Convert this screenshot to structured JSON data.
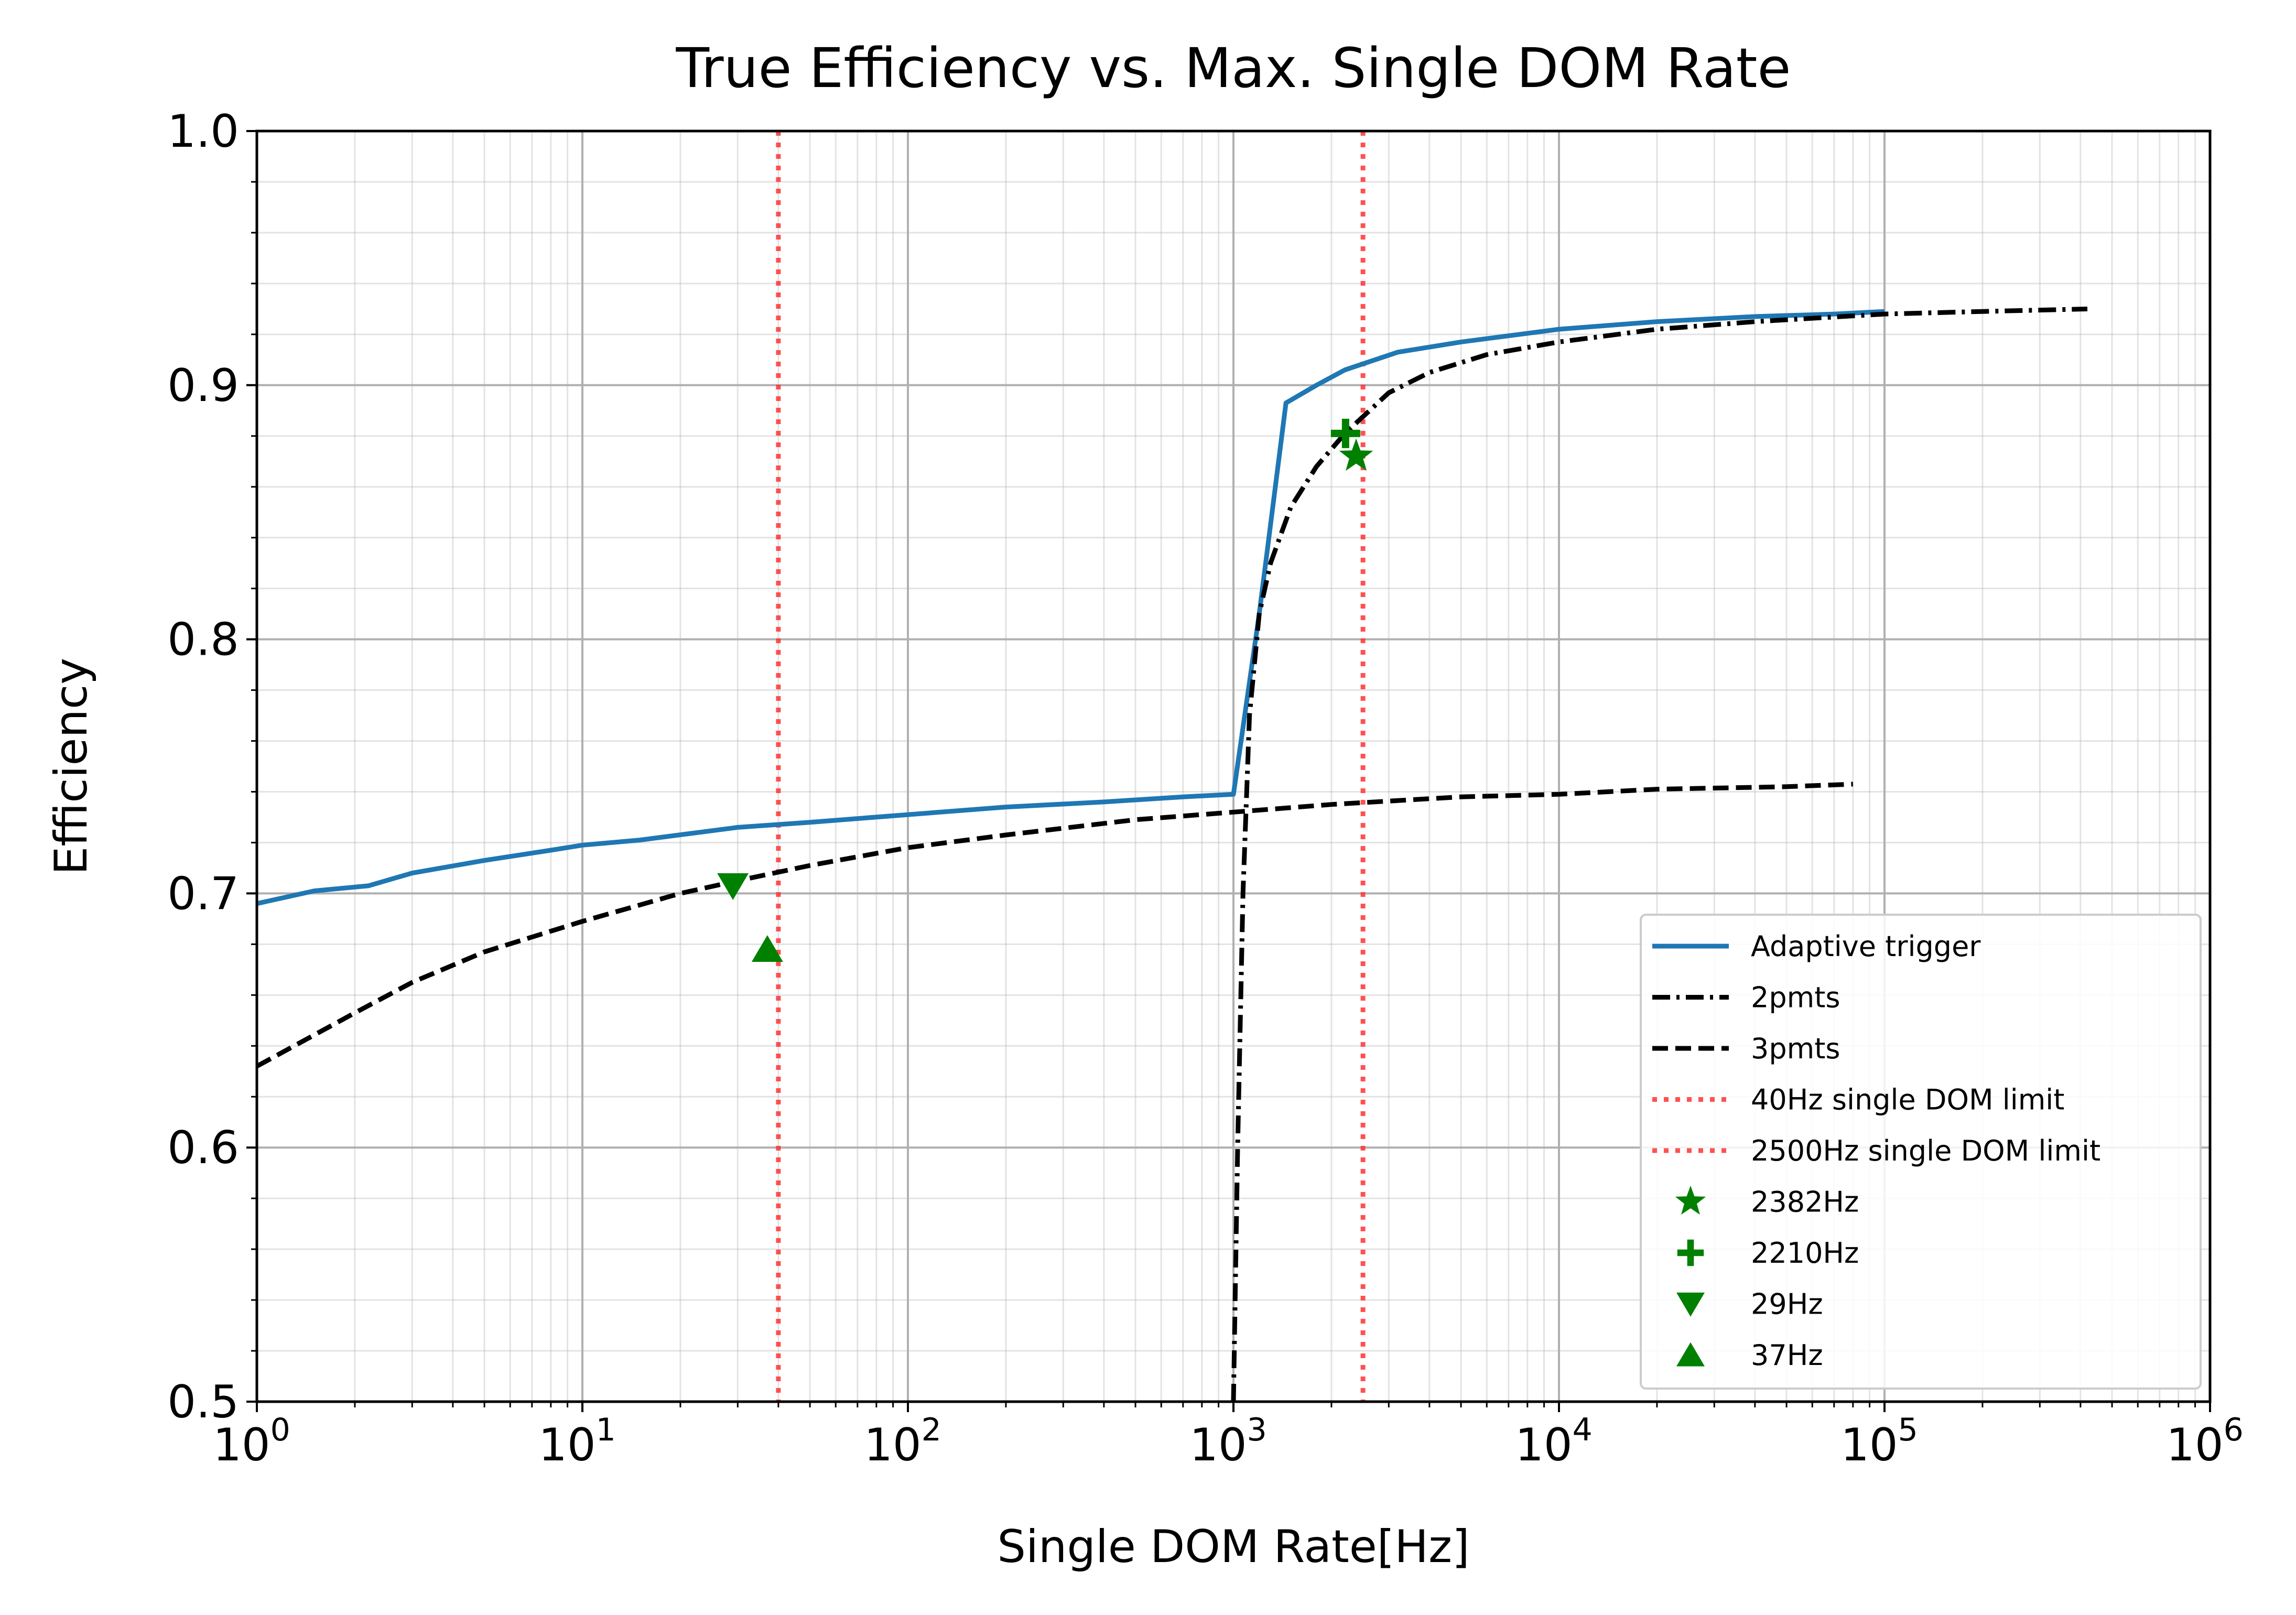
{
  "chart_data": {
    "type": "line",
    "title": "True Efficiency vs. Max. Single DOM Rate",
    "xlabel": "Single DOM Rate[Hz]",
    "ylabel": "Efficiency",
    "xscale": "log",
    "xlim": [
      1,
      1000000
    ],
    "ylim": [
      0.5,
      1.0
    ],
    "grid": true,
    "legend_position": "lower-right",
    "x_tick_labels": [
      {
        "base": "10",
        "exp": "0"
      },
      {
        "base": "10",
        "exp": "1"
      },
      {
        "base": "10",
        "exp": "2"
      },
      {
        "base": "10",
        "exp": "3"
      },
      {
        "base": "10",
        "exp": "4"
      },
      {
        "base": "10",
        "exp": "5"
      },
      {
        "base": "10",
        "exp": "6"
      }
    ],
    "y_tick_labels": [
      "0.5",
      "0.6",
      "0.7",
      "0.8",
      "0.9",
      "1.0"
    ],
    "series": [
      {
        "name": "Adaptive trigger",
        "style": "solid",
        "color": "#1f77b4",
        "x": [
          1,
          1.5,
          2.2,
          3,
          5,
          8,
          10,
          15,
          30,
          50,
          100,
          200,
          400,
          700,
          1000,
          1200,
          1450,
          1800,
          2200,
          3200,
          5000,
          10000,
          20000,
          40000,
          70000,
          100000
        ],
        "y": [
          0.696,
          0.701,
          0.703,
          0.708,
          0.713,
          0.717,
          0.719,
          0.721,
          0.726,
          0.728,
          0.731,
          0.734,
          0.736,
          0.738,
          0.739,
          0.81,
          0.893,
          0.9,
          0.906,
          0.913,
          0.917,
          0.922,
          0.925,
          0.927,
          0.928,
          0.929
        ]
      },
      {
        "name": "2pmts",
        "style": "dashdot",
        "color": "#000000",
        "x": [
          1000,
          1030,
          1070,
          1120,
          1200,
          1300,
          1500,
          1800,
          2200,
          3000,
          4000,
          6000,
          10000,
          20000,
          40000,
          100000,
          200000,
          420000
        ],
        "y": [
          0.5,
          0.6,
          0.7,
          0.77,
          0.81,
          0.83,
          0.852,
          0.868,
          0.881,
          0.897,
          0.905,
          0.912,
          0.917,
          0.922,
          0.925,
          0.928,
          0.929,
          0.93
        ]
      },
      {
        "name": "3pmts",
        "style": "dashed",
        "color": "#000000",
        "x": [
          1,
          2,
          3,
          5,
          10,
          20,
          30,
          50,
          100,
          200,
          500,
          1000,
          2000,
          5000,
          10000,
          20000,
          50000,
          80000
        ],
        "y": [
          0.632,
          0.653,
          0.665,
          0.677,
          0.689,
          0.7,
          0.705,
          0.711,
          0.718,
          0.723,
          0.729,
          0.732,
          0.735,
          0.738,
          0.739,
          0.741,
          0.742,
          0.743
        ]
      }
    ],
    "vlines": [
      {
        "name": "40Hz single DOM limit",
        "x": 40,
        "color": "#ff3333"
      },
      {
        "name": "2500Hz single DOM limit",
        "x": 2500,
        "color": "#ff3333"
      }
    ],
    "markers": [
      {
        "name": "2382Hz",
        "shape": "star",
        "x": 2382,
        "y": 0.872,
        "color": "#008000"
      },
      {
        "name": "2210Hz",
        "shape": "plus",
        "x": 2210,
        "y": 0.881,
        "color": "#008000"
      },
      {
        "name": "29Hz",
        "shape": "triangle-down",
        "x": 29,
        "y": 0.703,
        "color": "#008000"
      },
      {
        "name": "37Hz",
        "shape": "triangle-up",
        "x": 37,
        "y": 0.678,
        "color": "#008000"
      }
    ]
  }
}
